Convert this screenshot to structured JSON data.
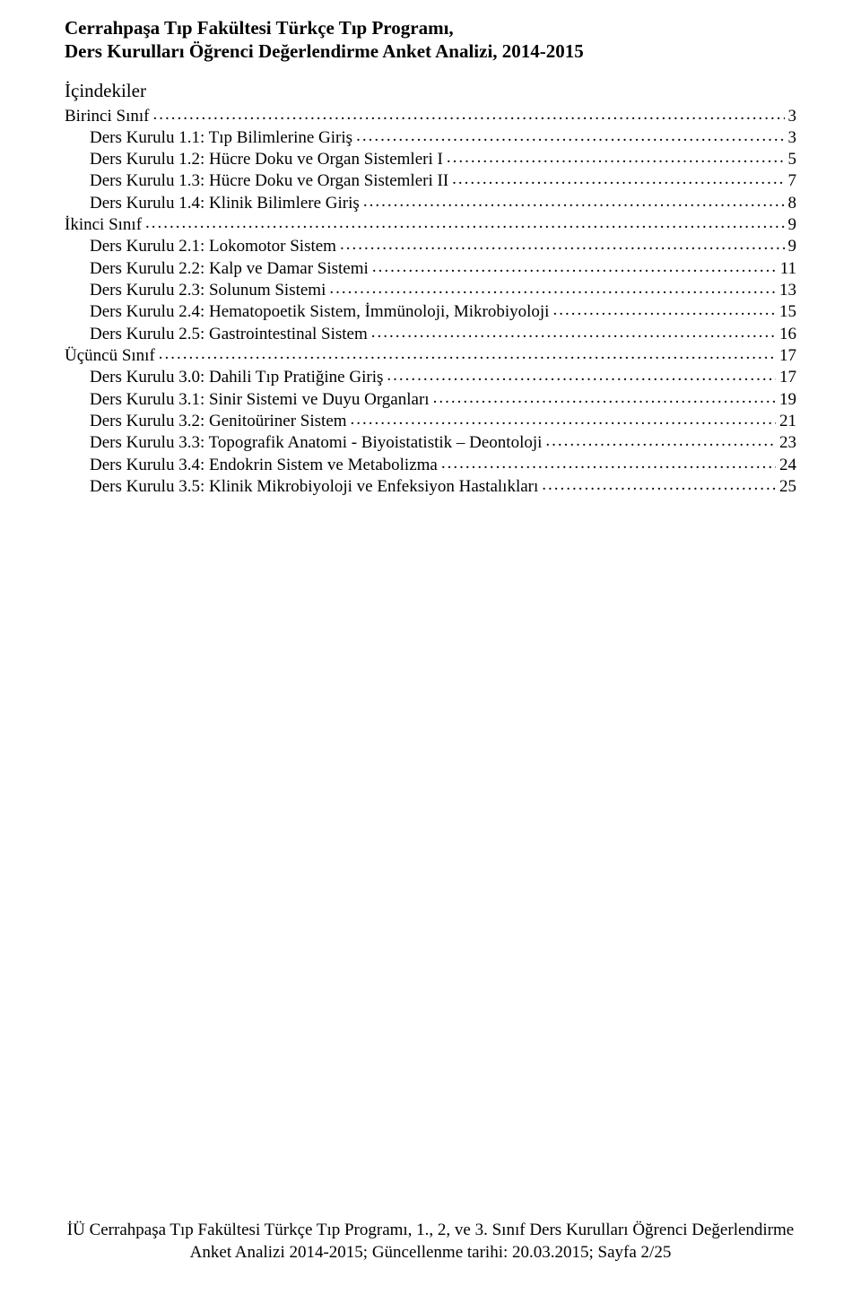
{
  "title_line1": "Cerrahpaşa Tıp Fakültesi Türkçe Tıp Programı,",
  "title_line2": "Ders Kurulları Öğrenci Değerlendirme Anket Analizi, 2014-2015",
  "toc_heading": "İçindekiler",
  "toc": [
    {
      "label": "Birinci Sınıf",
      "page": "3",
      "indent": false
    },
    {
      "label": "Ders Kurulu 1.1: Tıp Bilimlerine Giriş",
      "page": "3",
      "indent": true
    },
    {
      "label": "Ders Kurulu 1.2: Hücre Doku ve Organ Sistemleri I",
      "page": "5",
      "indent": true
    },
    {
      "label": "Ders Kurulu 1.3: Hücre Doku ve Organ Sistemleri II",
      "page": "7",
      "indent": true
    },
    {
      "label": "Ders Kurulu 1.4: Klinik Bilimlere Giriş",
      "page": "8",
      "indent": true
    },
    {
      "label": "İkinci Sınıf",
      "page": "9",
      "indent": false
    },
    {
      "label": "Ders Kurulu 2.1: Lokomotor Sistem",
      "page": "9",
      "indent": true
    },
    {
      "label": "Ders Kurulu 2.2: Kalp ve Damar Sistemi",
      "page": "11",
      "indent": true
    },
    {
      "label": "Ders Kurulu 2.3: Solunum Sistemi",
      "page": "13",
      "indent": true
    },
    {
      "label": "Ders Kurulu 2.4: Hematopoetik Sistem, İmmünoloji, Mikrobiyoloji",
      "page": "15",
      "indent": true
    },
    {
      "label": "Ders Kurulu 2.5: Gastrointestinal Sistem",
      "page": "16",
      "indent": true
    },
    {
      "label": "Üçüncü Sınıf",
      "page": "17",
      "indent": false
    },
    {
      "label": "Ders Kurulu 3.0: Dahili Tıp Pratiğine Giriş",
      "page": "17",
      "indent": true
    },
    {
      "label": "Ders Kurulu 3.1: Sinir Sistemi ve Duyu Organları",
      "page": "19",
      "indent": true
    },
    {
      "label": "Ders Kurulu 3.2: Genitoüriner Sistem",
      "page": "21",
      "indent": true
    },
    {
      "label": "Ders Kurulu 3.3: Topografik Anatomi - Biyoistatistik – Deontoloji",
      "page": "23",
      "indent": true
    },
    {
      "label": "Ders Kurulu 3.4: Endokrin Sistem ve Metabolizma",
      "page": "24",
      "indent": true
    },
    {
      "label": "Ders Kurulu 3.5: Klinik Mikrobiyoloji ve Enfeksiyon Hastalıkları",
      "page": "25",
      "indent": true
    }
  ],
  "footer_line1": "İÜ Cerrahpaşa Tıp Fakültesi Türkçe Tıp Programı, 1., 2, ve 3. Sınıf Ders Kurulları Öğrenci Değerlendirme",
  "footer_line2": "Anket Analizi 2014-2015; Güncellenme tarihi: 20.03.2015; Sayfa 2/25"
}
